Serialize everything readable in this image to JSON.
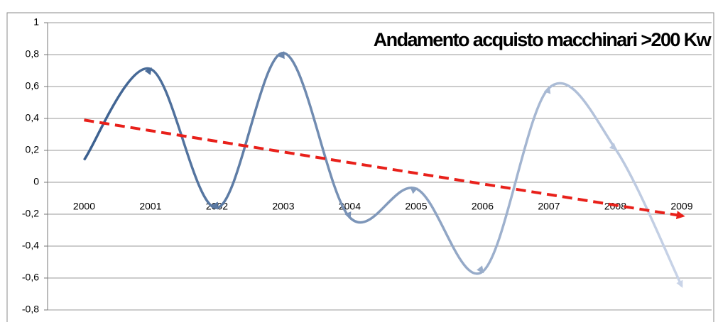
{
  "chart_data": {
    "type": "line",
    "title": "Andamento acquisto macchinari >200 Kw",
    "categories": [
      "2000",
      "2001",
      "2002",
      "2003",
      "2004",
      "2005",
      "2006",
      "2007",
      "2008",
      "2009"
    ],
    "values": [
      0.14,
      0.71,
      -0.16,
      0.81,
      -0.22,
      -0.04,
      -0.56,
      0.59,
      0.21,
      -0.65
    ],
    "gradient": [
      "#3a5f8f",
      "#c9d4e8"
    ],
    "trendline": {
      "start": 0.39,
      "end": -0.21,
      "color": "#e8201a"
    },
    "ylim": [
      -0.8,
      1
    ],
    "yticks": [
      {
        "value": -0.8,
        "label": "-0,8"
      },
      {
        "value": -0.6,
        "label": "-0,6"
      },
      {
        "value": -0.4,
        "label": "-0,4"
      },
      {
        "value": -0.2,
        "label": "-0,2"
      },
      0,
      {
        "value": 0.2,
        "label": "0,2"
      },
      {
        "value": 0.4,
        "label": "0,4"
      },
      {
        "value": 0.6,
        "label": "0,6"
      },
      {
        "value": 0.8,
        "label": "0,8"
      },
      1
    ],
    "grid": true
  }
}
